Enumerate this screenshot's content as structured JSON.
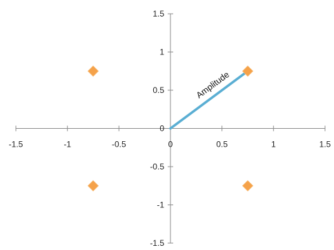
{
  "chart_data": {
    "type": "scatter",
    "title": "",
    "xlabel": "",
    "ylabel": "",
    "xlim": [
      -1.5,
      1.5
    ],
    "ylim": [
      -1.5,
      1.5
    ],
    "grid": false,
    "legend": "none",
    "x_ticks": [
      -1.5,
      -1,
      -0.5,
      0,
      0.5,
      1,
      1.5
    ],
    "y_ticks": [
      -1.5,
      -1,
      -0.5,
      0,
      0.5,
      1,
      1.5
    ],
    "x_tick_labels": [
      "-1.5",
      "-1",
      "-0.5",
      "0",
      "0.5",
      "1",
      "1.5"
    ],
    "y_tick_labels": [
      "-1.5",
      "-1",
      "-0.5",
      "0",
      "0.5",
      "1",
      "1.5"
    ],
    "series": [
      {
        "marker": "diamond",
        "color": "#f5a24a",
        "points": [
          {
            "x": 0.75,
            "y": 0.75
          },
          {
            "x": -0.75,
            "y": 0.75
          },
          {
            "x": -0.75,
            "y": -0.75
          },
          {
            "x": 0.75,
            "y": -0.75
          }
        ]
      }
    ],
    "vector": {
      "from": {
        "x": 0,
        "y": 0
      },
      "to": {
        "x": 0.72,
        "y": 0.72
      },
      "color": "#5aaed3",
      "label": "Amplitude"
    }
  }
}
